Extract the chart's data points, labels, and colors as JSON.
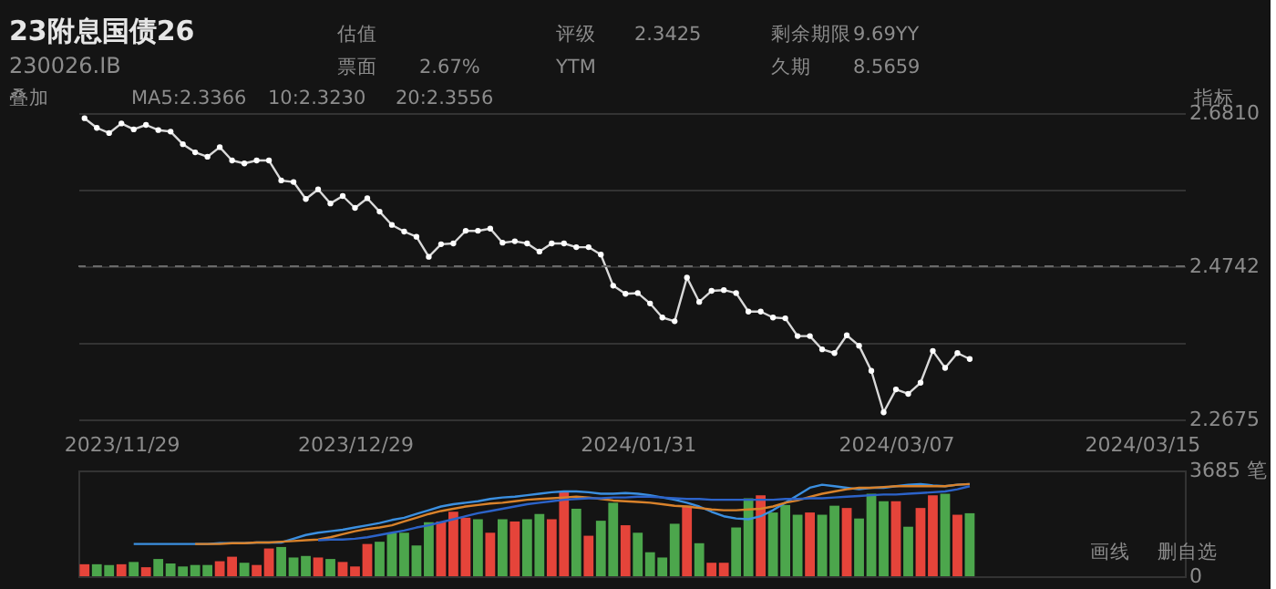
{
  "chart_data": [
    {
      "type": "line",
      "title": "23附息国债26",
      "subtitle": "230026.IB",
      "annotations": [
        "估值",
        "评级",
        "2.3425",
        "剩余期限",
        "9.69YY",
        "票面",
        "2.67%",
        "YTM",
        "久期",
        "8.5659",
        "叠加",
        "MA5:2.3366",
        "10:2.3230",
        "20:2.3556",
        "指标"
      ],
      "categories": [
        null,
        null,
        null,
        "2023/11/29",
        null,
        null,
        null,
        null,
        null,
        null,
        null,
        null,
        null,
        null,
        null,
        null,
        null,
        null,
        null,
        null,
        null,
        null,
        "2023/12/29",
        null,
        null,
        null,
        null,
        null,
        null,
        null,
        null,
        null,
        null,
        null,
        null,
        null,
        null,
        null,
        null,
        null,
        null,
        null,
        null,
        null,
        null,
        "2024/01/31",
        null,
        null,
        null,
        null,
        null,
        null,
        null,
        null,
        null,
        null,
        null,
        null,
        null,
        null,
        null,
        null,
        null,
        null,
        null,
        null,
        "2024/03/07",
        null,
        null,
        null,
        null,
        null,
        null,
        null,
        null,
        null,
        null,
        null,
        null,
        null,
        null,
        null,
        null,
        null,
        null,
        null,
        "2024/03/15",
        null,
        null,
        null
      ],
      "series": [
        {
          "color": "#d9d9d9",
          "values": [
            2.674,
            2.661,
            2.654,
            2.667,
            2.659,
            2.665,
            2.658,
            2.656,
            2.639,
            2.628,
            2.622,
            2.635,
            2.617,
            2.613,
            2.617,
            2.617,
            2.59,
            2.588,
            2.565,
            2.578,
            2.559,
            2.569,
            2.553,
            2.566,
            2.548,
            2.53,
            2.521,
            2.514,
            2.487,
            2.504,
            2.505,
            2.522,
            2.522,
            2.525,
            2.506,
            2.508,
            2.505,
            2.494,
            2.505,
            2.505,
            2.5,
            2.5,
            2.49,
            2.448,
            2.437,
            2.438,
            2.424,
            2.405,
            2.4,
            2.459,
            2.426,
            2.441,
            2.442,
            2.438,
            2.413,
            2.413,
            2.405,
            2.404,
            2.38,
            2.38,
            2.362,
            2.357,
            2.381,
            2.367,
            2.333,
            2.277,
            2.308,
            2.302,
            2.317,
            2.36,
            2.337,
            2.357,
            2.349,
            null,
            null,
            null,
            null,
            null,
            null,
            null,
            null,
            null,
            null,
            null,
            null,
            null,
            null,
            null,
            null,
            null
          ]
        }
      ],
      "ylim": [
        2.2675,
        2.681
      ],
      "yticks": [
        {
          "value": 2.681,
          "label": "2.6810"
        },
        {
          "value": 2.57763,
          "label": null
        },
        {
          "value": 2.47425,
          "label": "2.4742"
        },
        {
          "value": 2.37088,
          "label": null
        },
        {
          "value": 2.2675,
          "label": "2.2675"
        }
      ],
      "ref_lines": [
        {
          "axis": "y",
          "value": 2.47425,
          "color": "#6a6a6a",
          "line_style": "dashed"
        }
      ],
      "grid": "y",
      "marker": "circle",
      "line_style": "solid"
    },
    {
      "type": "bar",
      "annotations": [
        "画线",
        "删自选"
      ],
      "categories": [
        null,
        null,
        null,
        "2023/11/29",
        null,
        null,
        null,
        null,
        null,
        null,
        null,
        null,
        null,
        null,
        null,
        null,
        null,
        null,
        null,
        null,
        null,
        null,
        "2023/12/29",
        null,
        null,
        null,
        null,
        null,
        null,
        null,
        null,
        null,
        null,
        null,
        null,
        null,
        null,
        null,
        null,
        null,
        null,
        null,
        null,
        null,
        null,
        "2024/01/31",
        null,
        null,
        null,
        null,
        null,
        null,
        null,
        null,
        null,
        null,
        null,
        null,
        null,
        null,
        null,
        null,
        null,
        null,
        null,
        null,
        "2024/03/07",
        null,
        null,
        null,
        null,
        null,
        null,
        null,
        null,
        null,
        null,
        null,
        null,
        null,
        null,
        null,
        null,
        null,
        null,
        null,
        "2024/03/15",
        null,
        null,
        null
      ],
      "series": [
        {
          "type": "bar",
          "colors": [
            "#e5443a",
            "#4ca64c",
            "#4ca64c",
            "#e5443a",
            "#4ca64c",
            "#e5443a",
            "#4ca64c",
            "#4ca64c",
            "#4ca64c",
            "#4ca64c",
            "#4ca64c",
            "#e5443a",
            "#e5443a",
            "#4ca64c",
            "#e5443a",
            "#e5443a",
            "#4ca64c",
            "#4ca64c",
            "#4ca64c",
            "#e5443a",
            "#4ca64c",
            "#e5443a",
            "#e5443a",
            "#e5443a",
            "#4ca64c",
            "#4ca64c",
            "#4ca64c",
            "#4ca64c",
            "#4ca64c",
            "#e5443a",
            "#e5443a",
            "#e5443a",
            "#4ca64c",
            "#e5443a",
            "#4ca64c",
            "#e5443a",
            "#4ca64c",
            "#4ca64c",
            "#e5443a",
            "#e5443a",
            "#4ca64c",
            "#e5443a",
            "#4ca64c",
            "#4ca64c",
            "#e5443a",
            "#4ca64c",
            "#4ca64c",
            "#4ca64c",
            "#4ca64c",
            "#e5443a",
            "#4ca64c",
            "#e5443a",
            "#e5443a",
            "#4ca64c",
            "#4ca64c",
            "#e5443a",
            "#4ca64c",
            "#4ca64c",
            "#4ca64c",
            "#e5443a",
            "#4ca64c",
            "#4ca64c",
            "#e5443a",
            "#4ca64c",
            "#4ca64c",
            "#4ca64c",
            "#e5443a",
            "#4ca64c",
            "#e5443a",
            "#e5443a",
            "#4ca64c",
            "#e5443a",
            "#4ca64c",
            null,
            null,
            null,
            null,
            null,
            null,
            null,
            null,
            null,
            null,
            null,
            null,
            null,
            null,
            null,
            null,
            null
          ],
          "values": [
            418,
            418,
            392,
            418,
            497,
            314,
            601,
            444,
            340,
            392,
            392,
            523,
            680,
            470,
            392,
            967,
            1019,
            653,
            706,
            653,
            601,
            497,
            340,
            1124,
            1202,
            1516,
            1516,
            1072,
            1882,
            1908,
            2248,
            2039,
            1986,
            1516,
            1986,
            1908,
            1986,
            2169,
            1986,
            2927,
            2352,
            1411,
            1934,
            2561,
            1777,
            1516,
            836,
            653,
            1829,
            2457,
            1150,
            470,
            470,
            1699,
            2718,
            2823,
            2221,
            2483,
            2143,
            2221,
            2143,
            2457,
            2378,
            2012,
            2875,
            2613,
            2613,
            1725,
            2378,
            2823,
            2875,
            2143,
            2195,
            null,
            null,
            null,
            null,
            null,
            null,
            null,
            null,
            null,
            null,
            null,
            null,
            null,
            null,
            null,
            null,
            null
          ]
        },
        {
          "type": "line",
          "color": "#3b8fe0",
          "values": [
            null,
            null,
            null,
            null,
            1124,
            1124,
            1124,
            1124,
            1124,
            1124,
            1124,
            1150,
            1150,
            1150,
            1176,
            1176,
            1176,
            1307,
            1437,
            1516,
            1568,
            1620,
            1699,
            1777,
            1855,
            1960,
            2038,
            2169,
            2300,
            2430,
            2509,
            2561,
            2613,
            2692,
            2744,
            2770,
            2822,
            2874,
            2927,
            2953,
            2953,
            2927,
            2874,
            2874,
            2900,
            2874,
            2822,
            2744,
            2665,
            2561,
            2430,
            2247,
            2090,
            2012,
            1986,
            2090,
            2300,
            2561,
            2822,
            3083,
            3188,
            3136,
            3083,
            3031,
            3083,
            3083,
            3136,
            3188,
            3214,
            3162,
            3136,
            3188,
            3214,
            null,
            null,
            null,
            null,
            null,
            null,
            null,
            null,
            null,
            null,
            null,
            null,
            null,
            null,
            null,
            null,
            null
          ]
        },
        {
          "type": "line",
          "color": "#d9822b",
          "values": [
            null,
            null,
            null,
            null,
            null,
            null,
            null,
            null,
            null,
            1124,
            1124,
            1124,
            1150,
            1150,
            1176,
            1176,
            1202,
            1228,
            1254,
            1280,
            1359,
            1463,
            1568,
            1646,
            1698,
            1777,
            1908,
            2038,
            2169,
            2273,
            2352,
            2430,
            2482,
            2535,
            2561,
            2613,
            2665,
            2691,
            2718,
            2744,
            2770,
            2744,
            2691,
            2639,
            2613,
            2587,
            2561,
            2509,
            2456,
            2430,
            2378,
            2326,
            2300,
            2300,
            2326,
            2352,
            2430,
            2561,
            2639,
            2770,
            2874,
            2953,
            3031,
            3083,
            3083,
            3109,
            3136,
            3136,
            3136,
            3136,
            3136,
            3188,
            3214,
            null,
            null,
            null,
            null,
            null,
            null,
            null,
            null,
            null,
            null,
            null,
            null,
            null,
            null,
            null,
            null,
            null
          ]
        },
        {
          "type": "line",
          "color": "#2c63c9",
          "values": [
            null,
            null,
            null,
            null,
            null,
            null,
            null,
            null,
            null,
            null,
            null,
            null,
            null,
            null,
            null,
            null,
            null,
            null,
            null,
            1254,
            1280,
            1280,
            1307,
            1359,
            1437,
            1516,
            1594,
            1698,
            1777,
            1881,
            1986,
            2090,
            2195,
            2273,
            2352,
            2430,
            2508,
            2561,
            2613,
            2665,
            2691,
            2718,
            2718,
            2744,
            2744,
            2770,
            2770,
            2744,
            2718,
            2691,
            2691,
            2665,
            2665,
            2665,
            2665,
            2665,
            2665,
            2691,
            2691,
            2718,
            2718,
            2744,
            2770,
            2796,
            2822,
            2848,
            2848,
            2874,
            2900,
            2927,
            2953,
            3031,
            3136,
            null,
            null,
            null,
            null,
            null,
            null,
            null,
            null,
            null,
            null,
            null,
            null,
            null,
            null,
            null,
            null,
            null
          ]
        }
      ],
      "ylim": [
        0,
        3685
      ],
      "yticks": [
        {
          "value": 3685,
          "label": "3685 笔"
        },
        0
      ],
      "tick_labels": "y"
    }
  ]
}
